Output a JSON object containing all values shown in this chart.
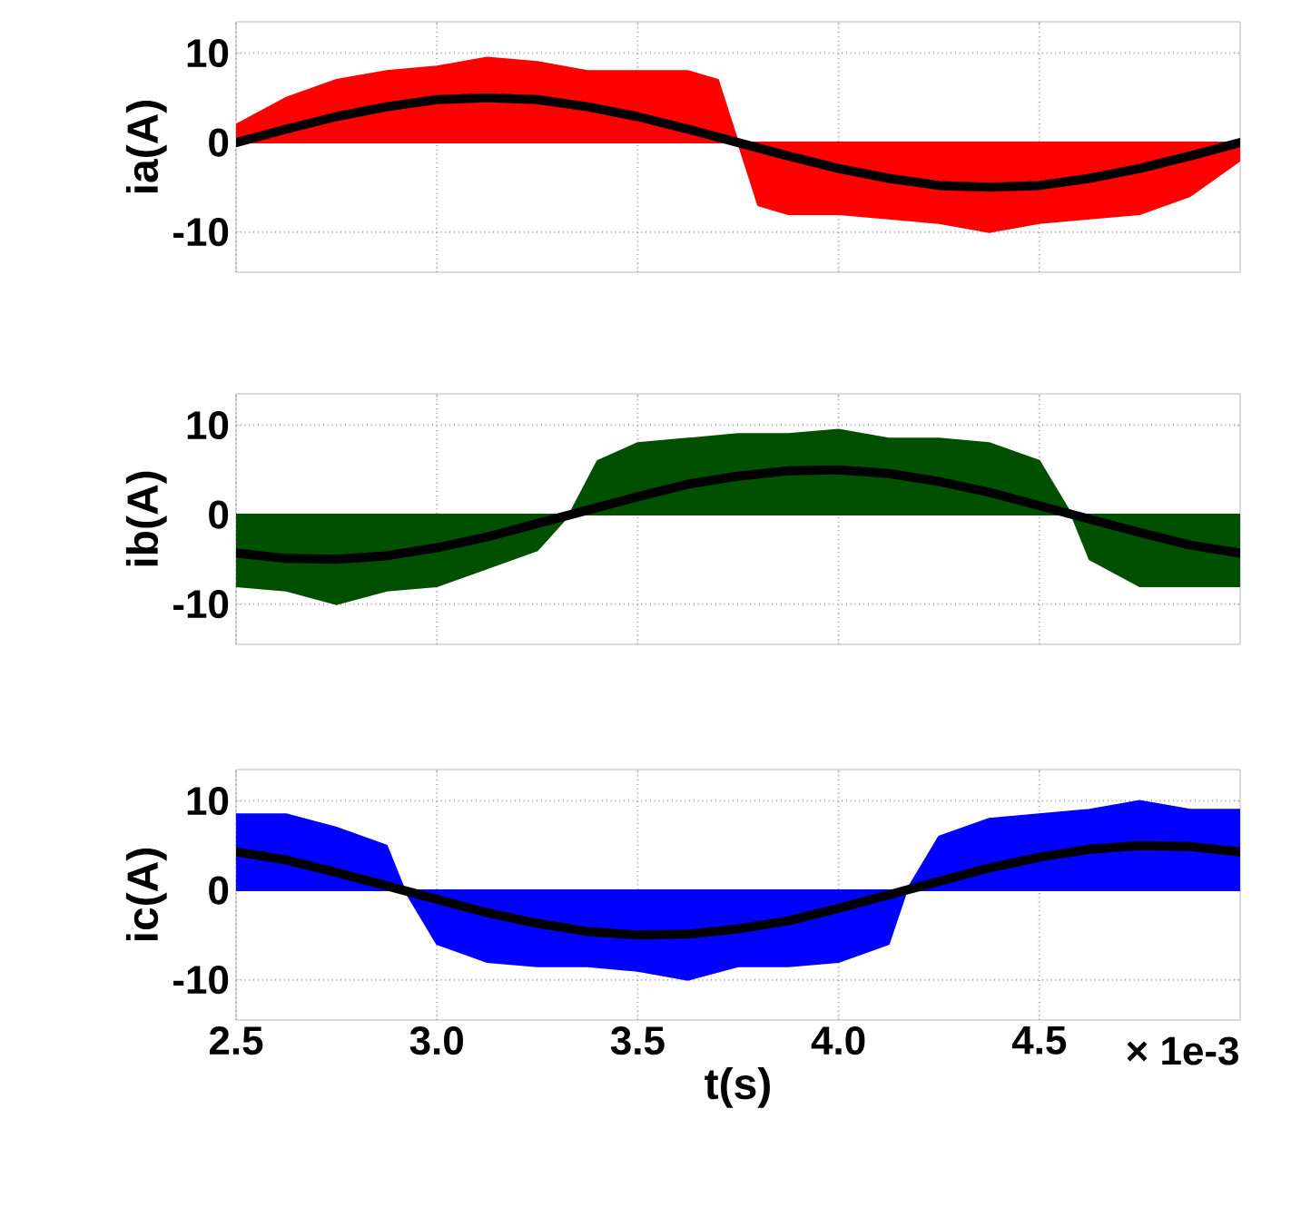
{
  "chart_data": [
    {
      "type": "line",
      "ylabel": "ia(A)",
      "xlim": [
        2.5,
        5
      ],
      "ylim": [
        -14.5,
        13.5
      ],
      "xticks": [
        {
          "value": 2.5,
          "label": null
        },
        {
          "value": 3,
          "label": null
        },
        {
          "value": 3.5,
          "label": null
        },
        {
          "value": 4,
          "label": null
        },
        {
          "value": 4.5,
          "label": null
        }
      ],
      "yticks": [
        -10,
        0,
        10
      ],
      "grid": true,
      "tick_labels": "y",
      "series": [
        {
          "type": "area",
          "color": "#ff0000",
          "x": [
            2.5,
            2.625,
            2.75,
            2.875,
            3,
            3.125,
            3.25,
            3.375,
            3.5,
            3.625,
            3.7,
            3.75,
            3.8,
            3.875,
            4,
            4.125,
            4.25,
            4.375,
            4.5,
            4.625,
            4.75,
            4.875,
            5
          ],
          "values": [
            2,
            5,
            7,
            8,
            8.5,
            9.5,
            9,
            8,
            8,
            8,
            7,
            0,
            -7,
            -8,
            -8,
            -8.5,
            -9,
            -10,
            -9,
            -8.5,
            -8,
            -6,
            -2
          ]
        },
        {
          "color": "#000000",
          "x": [
            2.5,
            2.625,
            2.75,
            2.875,
            3,
            3.125,
            3.25,
            3.375,
            3.5,
            3.625,
            3.75,
            3.875,
            4,
            4.125,
            4.25,
            4.375,
            4.5,
            4.625,
            4.75,
            4.875,
            5
          ],
          "values": [
            0,
            1.5,
            2.9,
            4.0,
            4.8,
            5,
            4.8,
            4.0,
            2.9,
            1.5,
            0,
            -1.5,
            -2.9,
            -4.0,
            -4.8,
            -5,
            -4.8,
            -4.0,
            -2.9,
            -1.5,
            0
          ]
        }
      ]
    },
    {
      "type": "line",
      "ylabel": "ib(A)",
      "xlim": [
        2.5,
        5
      ],
      "ylim": [
        -14.5,
        13.5
      ],
      "xticks": [
        {
          "value": 2.5,
          "label": null
        },
        {
          "value": 3,
          "label": null
        },
        {
          "value": 3.5,
          "label": null
        },
        {
          "value": 4,
          "label": null
        },
        {
          "value": 4.5,
          "label": null
        }
      ],
      "yticks": [
        -10,
        0,
        10
      ],
      "grid": true,
      "tick_labels": "y",
      "series": [
        {
          "type": "area",
          "color": "#005000",
          "x": [
            2.5,
            2.625,
            2.75,
            2.875,
            3,
            3.125,
            3.25,
            3.33,
            3.4,
            3.5,
            3.625,
            3.75,
            3.875,
            4,
            4.125,
            4.25,
            4.375,
            4.5,
            4.58,
            4.625,
            4.75,
            4.875,
            5
          ],
          "values": [
            -8,
            -8.5,
            -10,
            -8.5,
            -8,
            -6,
            -4,
            0,
            6,
            8,
            8.5,
            9,
            9,
            9.5,
            8.5,
            8.5,
            8,
            6,
            0,
            -5,
            -8,
            -8,
            -8
          ]
        },
        {
          "color": "#000000",
          "x": [
            2.5,
            2.625,
            2.75,
            2.875,
            3,
            3.125,
            3.25,
            3.375,
            3.5,
            3.625,
            3.75,
            3.875,
            4,
            4.125,
            4.25,
            4.375,
            4.5,
            4.625,
            4.75,
            4.875,
            5
          ],
          "values": [
            -4.3,
            -4.9,
            -5,
            -4.6,
            -3.7,
            -2.5,
            -1,
            0.5,
            2,
            3.4,
            4.3,
            4.9,
            5,
            4.6,
            3.7,
            2.5,
            1,
            -0.5,
            -2,
            -3.4,
            -4.3
          ]
        }
      ]
    },
    {
      "type": "line",
      "ylabel": "ic(A)",
      "xlabel": "t(s)",
      "annotations": [
        "× 1e-3"
      ],
      "xlim": [
        2.5,
        5
      ],
      "ylim": [
        -14.5,
        13.5
      ],
      "xticks": [
        2.5,
        {
          "value": 3,
          "label": "3.0"
        },
        3.5,
        {
          "value": 4,
          "label": "4.0"
        },
        4.5
      ],
      "yticks": [
        -10,
        0,
        10
      ],
      "grid": true,
      "series": [
        {
          "type": "area",
          "color": "#0000ff",
          "x": [
            2.5,
            2.625,
            2.75,
            2.875,
            2.92,
            3,
            3.125,
            3.25,
            3.375,
            3.5,
            3.625,
            3.75,
            3.875,
            4,
            4.125,
            4.17,
            4.25,
            4.375,
            4.5,
            4.625,
            4.75,
            4.875,
            5
          ],
          "values": [
            8.5,
            8.5,
            7,
            5,
            0,
            -6,
            -8,
            -8.5,
            -8.5,
            -9,
            -10,
            -8.5,
            -8.5,
            -8,
            -6,
            0,
            6,
            8,
            8.5,
            9,
            10,
            9,
            9
          ]
        },
        {
          "color": "#000000",
          "x": [
            2.5,
            2.625,
            2.75,
            2.875,
            3,
            3.125,
            3.25,
            3.375,
            3.5,
            3.625,
            3.75,
            3.875,
            4,
            4.125,
            4.25,
            4.375,
            4.5,
            4.625,
            4.75,
            4.875,
            5
          ],
          "values": [
            4.3,
            3.4,
            2,
            0.5,
            -1,
            -2.5,
            -3.7,
            -4.6,
            -5,
            -4.9,
            -4.3,
            -3.4,
            -2,
            -0.5,
            1,
            2.5,
            3.7,
            4.6,
            5,
            4.9,
            4.3
          ]
        }
      ]
    }
  ]
}
